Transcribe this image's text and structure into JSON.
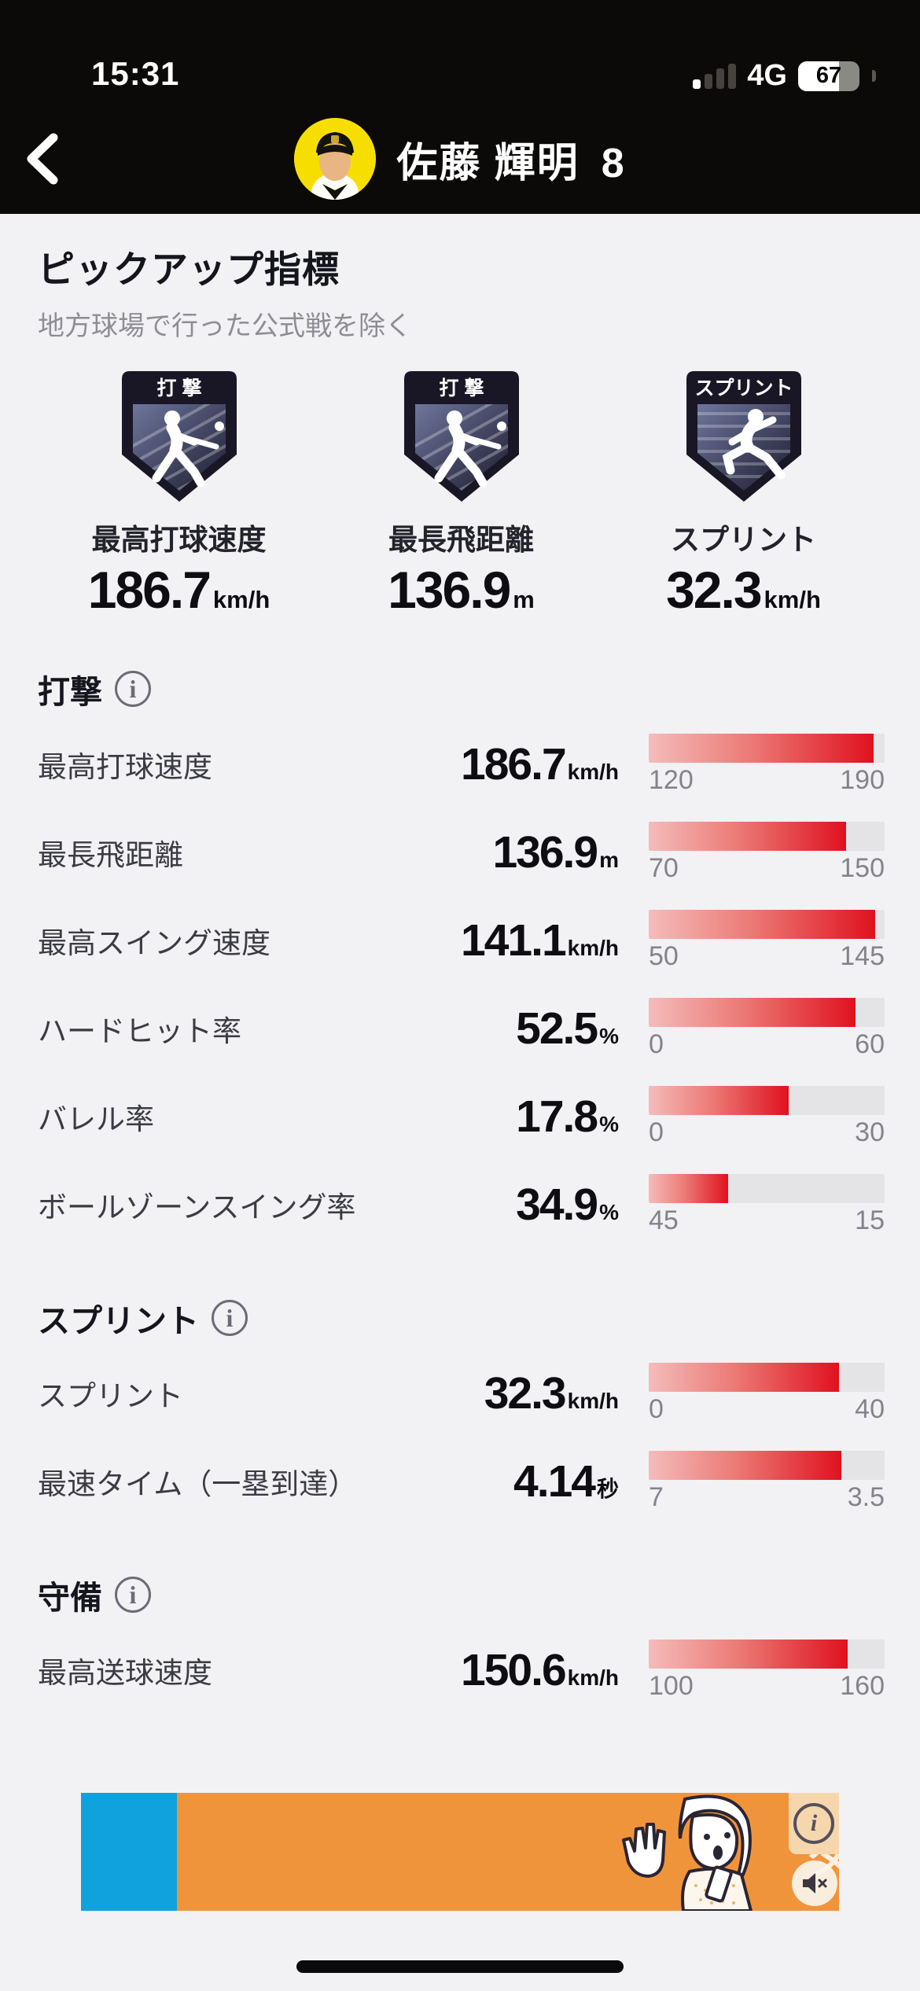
{
  "status_bar": {
    "time": "15:31",
    "network": "4G",
    "battery_percent": 67
  },
  "header": {
    "name": "佐藤 輝明",
    "number": "8"
  },
  "pickup": {
    "title": "ピックアップ指標",
    "subtitle": "地方球場で行った公式戦を除く",
    "badges": [
      {
        "badge_label": "打 撃",
        "icon": "batter",
        "label": "最高打球速度",
        "value": "186.7",
        "unit": "km/h"
      },
      {
        "badge_label": "打 撃",
        "icon": "batter",
        "label": "最長飛距離",
        "value": "136.9",
        "unit": "m"
      },
      {
        "badge_label": "スプリント",
        "icon": "runner",
        "label": "スプリント",
        "value": "32.3",
        "unit": "km/h"
      }
    ]
  },
  "sections": [
    {
      "title": "打撃",
      "rows": [
        {
          "label": "最高打球速度",
          "value": "186.7",
          "unit": "km/h",
          "min": 120,
          "max": 190
        },
        {
          "label": "最長飛距離",
          "value": "136.9",
          "unit": "m",
          "min": 70,
          "max": 150
        },
        {
          "label": "最高スイング速度",
          "value": "141.1",
          "unit": "km/h",
          "min": 50,
          "max": 145
        },
        {
          "label": "ハードヒット率",
          "value": "52.5",
          "unit": "%",
          "min": 0,
          "max": 60
        },
        {
          "label": "バレル率",
          "value": "17.8",
          "unit": "%",
          "min": 0,
          "max": 30
        },
        {
          "label": "ボールゾーンスイング率",
          "value": "34.9",
          "unit": "%",
          "min": 45,
          "max": 15
        }
      ]
    },
    {
      "title": "スプリント",
      "rows": [
        {
          "label": "スプリント",
          "value": "32.3",
          "unit": "km/h",
          "min": 0,
          "max": 40
        },
        {
          "label": "最速タイム（一塁到達）",
          "value": "4.14",
          "unit": "秒",
          "min": 7,
          "max": 3.5
        }
      ]
    },
    {
      "title": "守備",
      "rows": [
        {
          "label": "最高送球速度",
          "value": "150.6",
          "unit": "km/h",
          "min": 100,
          "max": 160
        }
      ]
    }
  ],
  "colors": {
    "bar_fill_start": "#f4bcba",
    "bar_fill_end": "#df121f",
    "bar_track": "#e4e4e7",
    "badge_dark": "#191725",
    "accent_black": "#0c0a08",
    "ad_orange": "#f0943c",
    "ad_blue": "#10a2dd"
  },
  "ad": {
    "fragment_text": "タ",
    "info_glyph": "i"
  }
}
